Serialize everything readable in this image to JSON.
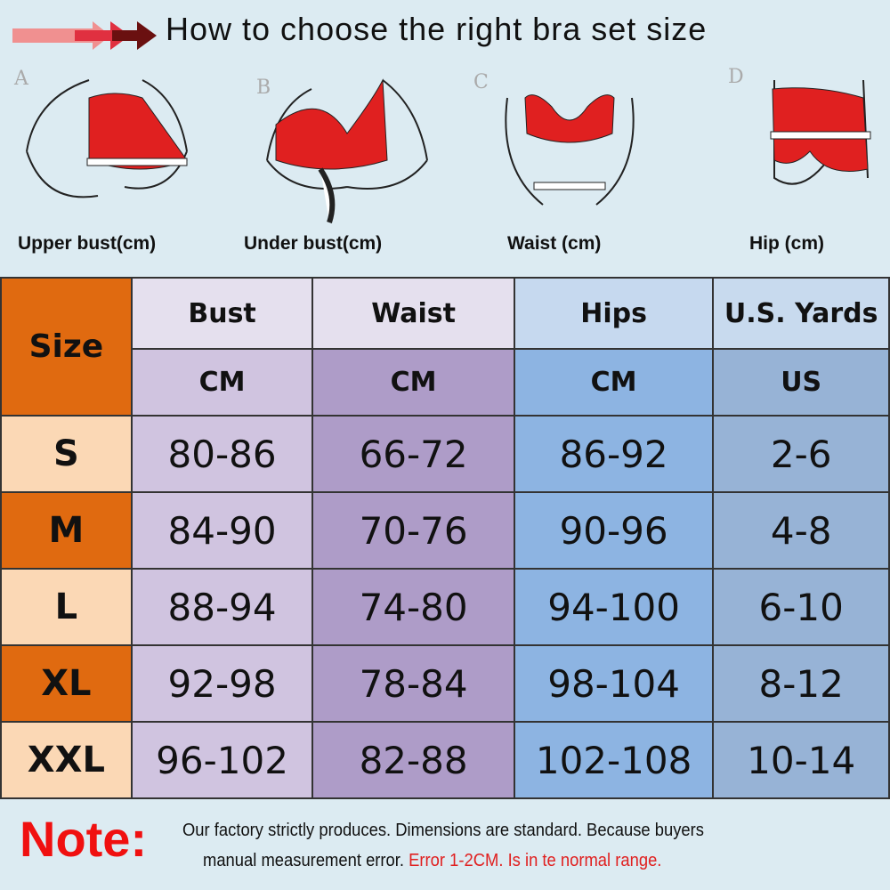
{
  "header": {
    "title": "How to choose the right bra set size"
  },
  "steps": [
    {
      "letter": "A",
      "label": "Upper bust(cm)"
    },
    {
      "letter": "B",
      "label": "Under bust(cm)"
    },
    {
      "letter": "C",
      "label": "Waist (cm)"
    },
    {
      "letter": "D",
      "label": "Hip (cm)"
    }
  ],
  "table": {
    "size_header": "Size",
    "columns": [
      {
        "name": "Bust",
        "unit": "CM"
      },
      {
        "name": "Waist",
        "unit": "CM"
      },
      {
        "name": "Hips",
        "unit": "CM"
      },
      {
        "name": "U.S. Yards",
        "unit": "US"
      }
    ],
    "rows": [
      {
        "size": "S",
        "values": [
          "80-86",
          "66-72",
          "86-92",
          "2-6"
        ]
      },
      {
        "size": "M",
        "values": [
          "84-90",
          "70-76",
          "90-96",
          "4-8"
        ]
      },
      {
        "size": "L",
        "values": [
          "88-94",
          "74-80",
          "94-100",
          "6-10"
        ]
      },
      {
        "size": "XL",
        "values": [
          "92-98",
          "78-84",
          "98-104",
          "8-12"
        ]
      },
      {
        "size": "XXL",
        "values": [
          "96-102",
          "82-88",
          "102-108",
          "10-14"
        ]
      }
    ]
  },
  "note": {
    "label": "Note:",
    "line1": "Our factory strictly produces.  Dimensions are standard.  Because buyers",
    "line2_black": "manual measurement error.",
    "line2_red": "Error 1-2CM.  Is in te normal range."
  },
  "colors": {
    "accent": "#e06a10",
    "note_red": "#f01010",
    "garment": "#e02020"
  }
}
